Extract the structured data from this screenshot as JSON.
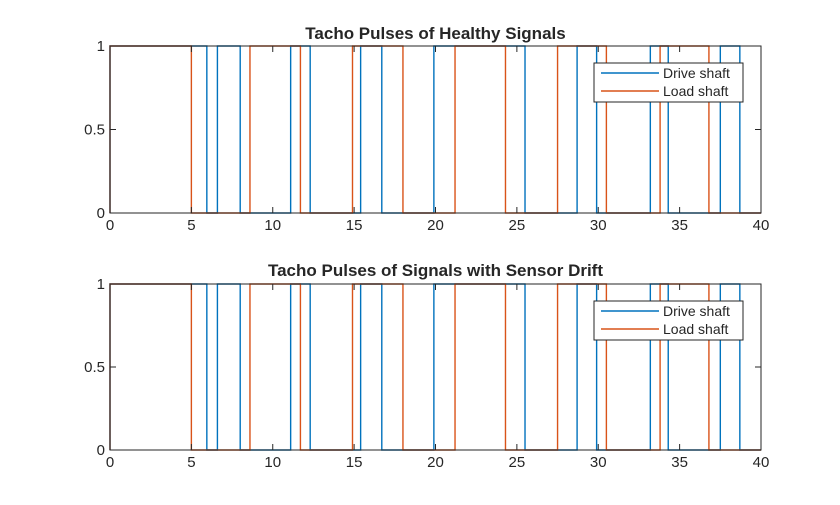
{
  "colors": {
    "drive": "#0072BD",
    "load": "#D95319",
    "axes": "#262626",
    "background": "#ffffff"
  },
  "chart_data": [
    {
      "type": "line",
      "title": "Tacho Pulses of Healthy Signals",
      "xlabel": "",
      "ylabel": "",
      "xlim": [
        0,
        40
      ],
      "ylim": [
        0,
        1
      ],
      "x_ticks": [
        "0",
        "5",
        "10",
        "15",
        "20",
        "25",
        "30",
        "35",
        "40"
      ],
      "y_ticks": [
        "0",
        "0.5",
        "1"
      ],
      "legend": {
        "placement": "top-right",
        "entries": [
          "Drive shaft",
          "Load shaft"
        ]
      },
      "grid": false,
      "series": [
        {
          "name": "Drive shaft",
          "pulses": [
            [
              0,
              5.95
            ],
            [
              6.6,
              8.0
            ],
            [
              11.1,
              12.3
            ],
            [
              15.4,
              16.7
            ],
            [
              19.9,
              25.5
            ],
            [
              28.7,
              29.9
            ],
            [
              33.2,
              34.3
            ],
            [
              37.5,
              38.7
            ]
          ]
        },
        {
          "name": "Load shaft",
          "pulses": [
            [
              0,
              5.0
            ],
            [
              8.6,
              11.7
            ],
            [
              14.9,
              18.0
            ],
            [
              21.2,
              24.3
            ],
            [
              27.5,
              30.5
            ],
            [
              33.8,
              36.8
            ]
          ]
        }
      ]
    },
    {
      "type": "line",
      "title": "Tacho Pulses of Signals with Sensor Drift",
      "xlabel": "",
      "ylabel": "",
      "xlim": [
        0,
        40
      ],
      "ylim": [
        0,
        1
      ],
      "x_ticks": [
        "0",
        "5",
        "10",
        "15",
        "20",
        "25",
        "30",
        "35",
        "40"
      ],
      "y_ticks": [
        "0",
        "0.5",
        "1"
      ],
      "legend": {
        "placement": "top-right",
        "entries": [
          "Drive shaft",
          "Load shaft"
        ]
      },
      "grid": false,
      "series": [
        {
          "name": "Drive shaft",
          "pulses": [
            [
              0,
              5.95
            ],
            [
              6.6,
              8.0
            ],
            [
              11.1,
              12.3
            ],
            [
              15.4,
              16.7
            ],
            [
              19.9,
              25.5
            ],
            [
              28.7,
              29.9
            ],
            [
              33.2,
              34.3
            ],
            [
              37.5,
              38.7
            ]
          ]
        },
        {
          "name": "Load shaft",
          "pulses": [
            [
              0,
              5.0
            ],
            [
              8.6,
              11.7
            ],
            [
              14.9,
              18.0
            ],
            [
              21.2,
              24.3
            ],
            [
              27.5,
              30.5
            ],
            [
              33.8,
              36.8
            ]
          ]
        }
      ]
    }
  ]
}
